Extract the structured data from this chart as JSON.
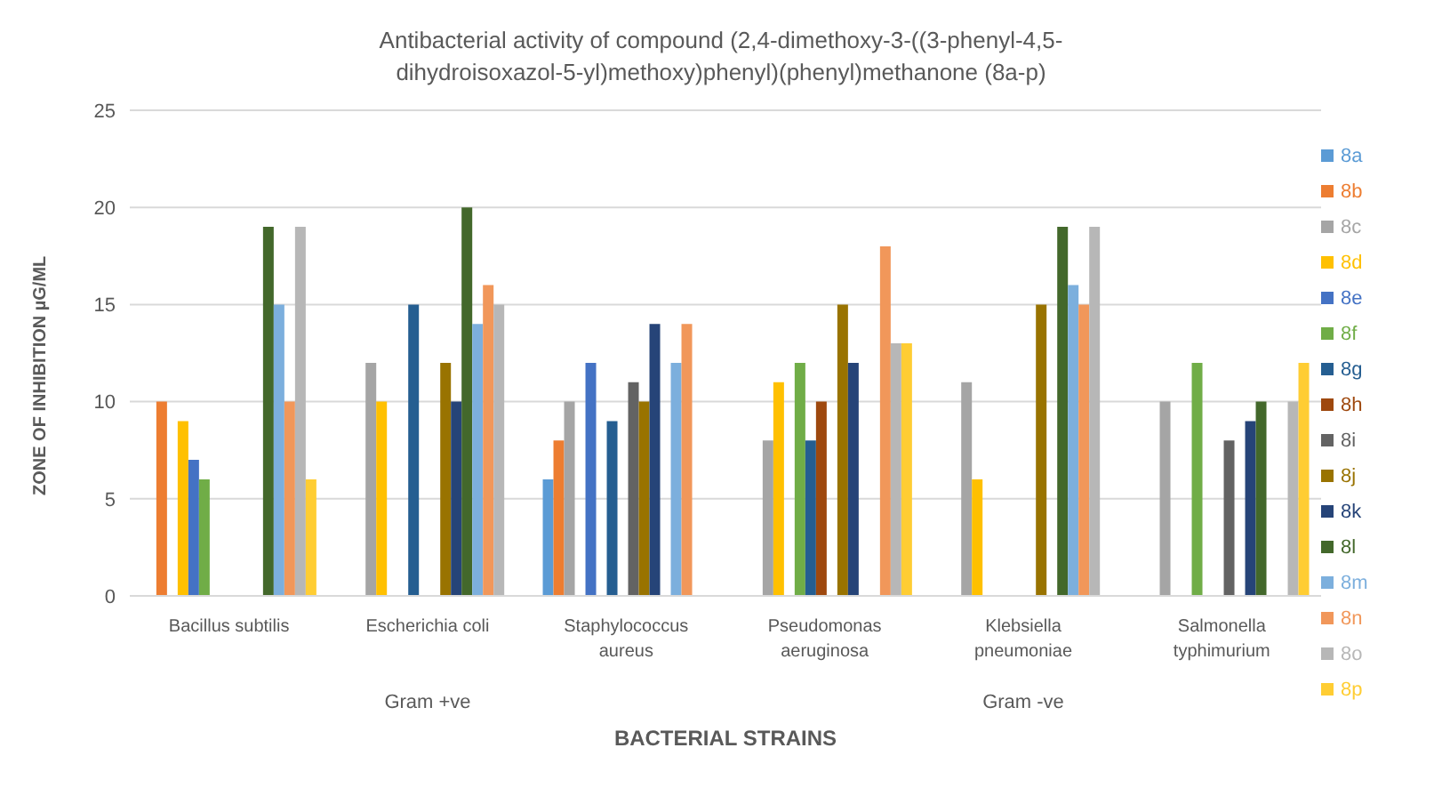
{
  "chart_data": {
    "type": "bar",
    "title": "Antibacterial activity of compound (2,4-dimethoxy-3-((3-phenyl-4,5-dihydroisoxazol-5-yl)methoxy)phenyl)(phenyl)methanone (8a-p)",
    "xlabel": "BACTERIAL STRAINS",
    "ylabel": "ZONE OF INHIBITION µG/ML",
    "categories": [
      "Bacillus subtilis",
      "Escherichia coli",
      "Staphylococcus aureus",
      "Pseudomonas aeruginosa",
      "Klebsiella pneumoniae",
      "Salmonella typhimurium"
    ],
    "annotations": [
      "Gram +ve",
      "Gram -ve"
    ],
    "series": [
      {
        "name": "8a",
        "color": "#5b9bd5",
        "values": [
          0,
          0,
          6,
          0,
          0,
          0
        ]
      },
      {
        "name": "8b",
        "color": "#ed7d31",
        "values": [
          10,
          0,
          8,
          0,
          0,
          0
        ]
      },
      {
        "name": "8c",
        "color": "#a5a5a5",
        "values": [
          0,
          12,
          10,
          8,
          11,
          10
        ]
      },
      {
        "name": "8d",
        "color": "#ffc000",
        "values": [
          9,
          10,
          0,
          11,
          6,
          0
        ]
      },
      {
        "name": "8e",
        "color": "#4472c4",
        "values": [
          7,
          0,
          12,
          0,
          0,
          0
        ]
      },
      {
        "name": "8f",
        "color": "#70ad47",
        "values": [
          6,
          0,
          0,
          12,
          0,
          12
        ]
      },
      {
        "name": "8g",
        "color": "#255e91",
        "values": [
          0,
          15,
          9,
          8,
          0,
          0
        ]
      },
      {
        "name": "8h",
        "color": "#9e480e",
        "values": [
          0,
          0,
          0,
          10,
          0,
          0
        ]
      },
      {
        "name": "8i",
        "color": "#636363",
        "values": [
          0,
          0,
          11,
          0,
          0,
          8
        ]
      },
      {
        "name": "8j",
        "color": "#997300",
        "values": [
          0,
          12,
          10,
          15,
          15,
          0
        ]
      },
      {
        "name": "8k",
        "color": "#264478",
        "values": [
          0,
          10,
          14,
          12,
          0,
          9
        ]
      },
      {
        "name": "8l",
        "color": "#43682b",
        "values": [
          19,
          20,
          0,
          0,
          19,
          10
        ]
      },
      {
        "name": "8m",
        "color": "#7cafdd",
        "values": [
          15,
          14,
          12,
          0,
          16,
          0
        ]
      },
      {
        "name": "8n",
        "color": "#f1975a",
        "values": [
          10,
          16,
          14,
          18,
          15,
          0
        ]
      },
      {
        "name": "8o",
        "color": "#b7b7b7",
        "values": [
          19,
          15,
          0,
          13,
          19,
          10
        ]
      },
      {
        "name": "8p",
        "color": "#ffcd33",
        "values": [
          6,
          0,
          0,
          13,
          0,
          12
        ]
      }
    ],
    "ylim": [
      0,
      25
    ],
    "yticks": [
      0,
      5,
      10,
      15,
      20,
      25
    ],
    "grid": "y",
    "legend": "right"
  }
}
